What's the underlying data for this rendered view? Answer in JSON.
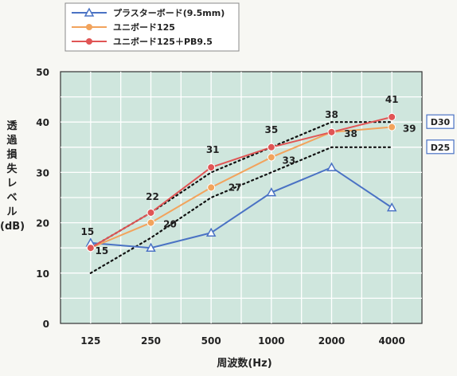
{
  "chart_data": {
    "type": "line",
    "categories": [
      "125",
      "250",
      "500",
      "1000",
      "2000",
      "4000"
    ],
    "ylim": [
      0,
      50
    ],
    "yticks": [
      0,
      10,
      20,
      30,
      40,
      50
    ],
    "xlabel": "周波数(Hz)",
    "ylabel": "透過損失レベル(dB)",
    "grid": true,
    "legend_position": "top",
    "series": [
      {
        "name": "プラスターボード(9.5mm)",
        "values": [
          16,
          15,
          18,
          26,
          31,
          23
        ],
        "color": "#4a72c4",
        "marker": "triangle"
      },
      {
        "name": "ユニボード125",
        "values": [
          15,
          20,
          27,
          33,
          38,
          39
        ],
        "color": "#f2a35c",
        "marker": "circle"
      },
      {
        "name": "ユニボード125＋PB9.5",
        "values": [
          15,
          22,
          31,
          35,
          38,
          41
        ],
        "color": "#e05555",
        "marker": "circle"
      }
    ],
    "reference_curves": [
      {
        "name": "D30",
        "values": [
          15,
          22,
          30,
          35,
          40,
          40
        ]
      },
      {
        "name": "D25",
        "values": [
          10,
          17,
          25,
          30,
          35,
          35
        ]
      }
    ],
    "annotations": [
      {
        "text": "15",
        "category": "125",
        "value": 15,
        "dx": -4,
        "dy": -16
      },
      {
        "text": "15",
        "category": "125",
        "value": 15,
        "dx": 14,
        "dy": 8
      },
      {
        "text": "22",
        "category": "250",
        "value": 22,
        "dx": 2,
        "dy": -16
      },
      {
        "text": "20",
        "category": "250",
        "value": 20,
        "dx": 24,
        "dy": 6
      },
      {
        "text": "31",
        "category": "500",
        "value": 31,
        "dx": 2,
        "dy": -18
      },
      {
        "text": "27",
        "category": "500",
        "value": 27,
        "dx": 30,
        "dy": 4
      },
      {
        "text": "35",
        "category": "1000",
        "value": 35,
        "dx": 0,
        "dy": -18
      },
      {
        "text": "33",
        "category": "1000",
        "value": 33,
        "dx": 22,
        "dy": 8
      },
      {
        "text": "38",
        "category": "2000",
        "value": 38,
        "dx": 0,
        "dy": -18
      },
      {
        "text": "38",
        "category": "2000",
        "value": 38,
        "dx": 24,
        "dy": 6
      },
      {
        "text": "41",
        "category": "4000",
        "value": 41,
        "dx": 0,
        "dy": -18
      },
      {
        "text": "39",
        "category": "4000",
        "value": 39,
        "dx": 22,
        "dy": 6
      }
    ]
  }
}
